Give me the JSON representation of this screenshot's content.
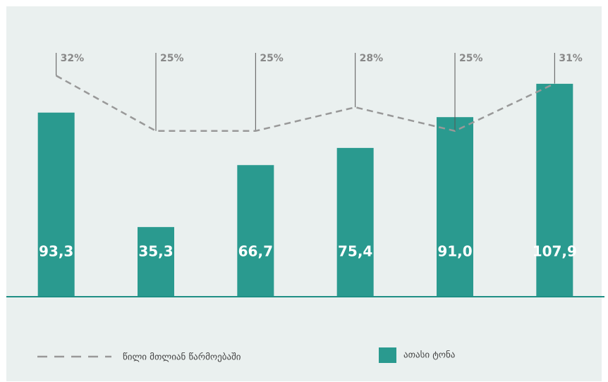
{
  "chart_data": {
    "type": "bar",
    "series": [
      {
        "name": "ათასი ტონა",
        "color": "#2a9a8f",
        "type": "bar",
        "values": [
          93.3,
          35.3,
          66.7,
          75.4,
          91.0,
          107.9
        ],
        "value_labels": [
          "93,3",
          "35,3",
          "66,7",
          "75,4",
          "91,0",
          "107,9"
        ]
      },
      {
        "name": "წილი მთლიან წარმოებაში",
        "color": "#999999",
        "type": "line",
        "axis": "y2",
        "values": [
          32,
          25,
          25,
          28,
          25,
          31
        ],
        "value_labels": [
          "32%",
          "25%",
          "25%",
          "28%",
          "25%",
          "31%"
        ]
      }
    ],
    "ylim": [
      0,
      140
    ],
    "y2lim": [
      4,
      39
    ]
  }
}
